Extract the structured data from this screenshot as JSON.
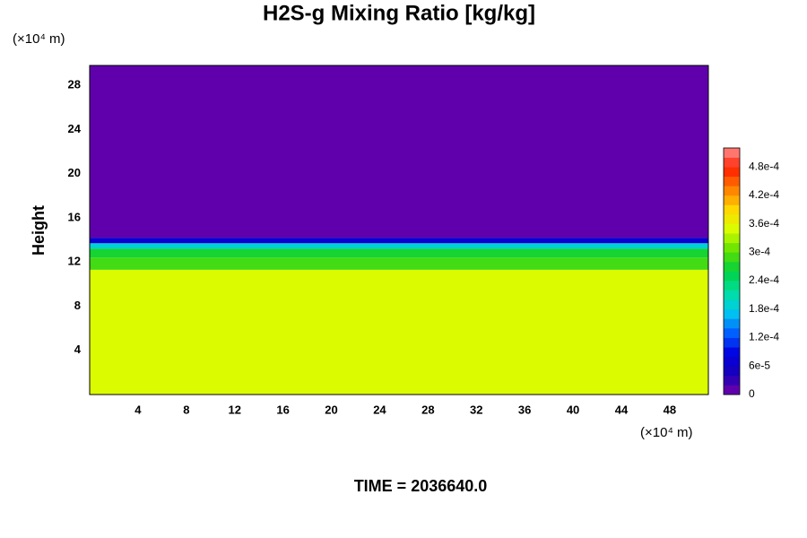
{
  "chart_data": {
    "type": "heatmap",
    "title": "H2S-g Mixing Ratio [kg/kg]",
    "ylabel": "Height",
    "x_unit": "(×10⁴ m)",
    "y_unit": "(×10⁴ m)",
    "footer": "TIME = 2036640.0",
    "xlim": [
      0,
      51.2
    ],
    "ylim": [
      0,
      29.8
    ],
    "xticks": [
      4,
      8,
      12,
      16,
      20,
      24,
      28,
      32,
      36,
      40,
      44,
      48
    ],
    "yticks": [
      4,
      8,
      12,
      16,
      20,
      24,
      28
    ],
    "y_edges": [
      0,
      11.3,
      12.4,
      13.2,
      13.7,
      14.2,
      29.8
    ],
    "values": [
      0.00035,
      0.0003,
      0.00026,
      0.00018,
      6e-05,
      0
    ],
    "clim": [
      0,
      0.00052
    ],
    "levels": 26,
    "colorscale": [
      "#7400a8",
      "#1800b8",
      "#0000e0",
      "#0060ff",
      "#00c8f0",
      "#00e0a0",
      "#00d040",
      "#60e000",
      "#d8ff00",
      "#ffd800",
      "#ff8000",
      "#ff2000",
      "#ff9090"
    ],
    "cticks": [
      0,
      {
        "value": 6e-05,
        "label": "6e-5"
      },
      {
        "value": 0.00012,
        "label": "1.2e-4"
      },
      {
        "value": 0.00018,
        "label": "1.8e-4"
      },
      {
        "value": 0.00024,
        "label": "2.4e-4"
      },
      {
        "value": 0.0003,
        "label": "3e-4"
      },
      {
        "value": 0.00036,
        "label": "3.6e-4"
      },
      {
        "value": 0.00042,
        "label": "4.2e-4"
      },
      {
        "value": 0.00048,
        "label": "4.8e-4"
      }
    ]
  }
}
